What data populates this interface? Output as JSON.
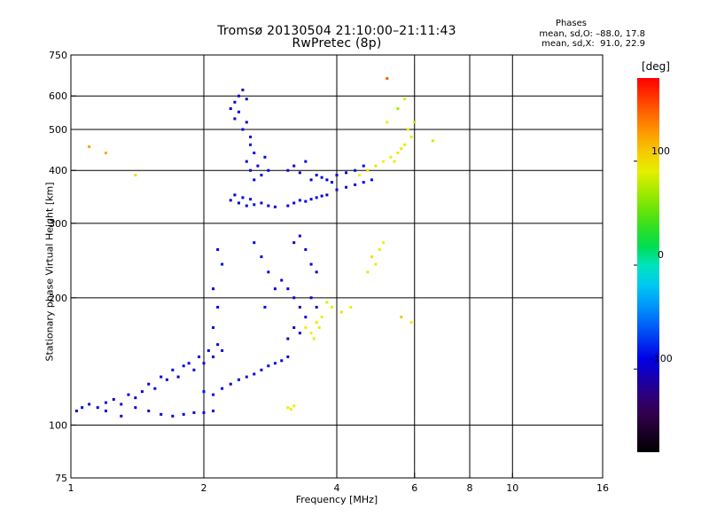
{
  "title_line1": "Tromsø 20130504 21:10:00–21:11:43",
  "title_line2": "RwPretec (8p)",
  "phase_legend": {
    "heading": "Phases",
    "o_line": "mean, sd,O: –88.0, 17.8",
    "x_line": "mean, sd,X:  91.0, 22.9"
  },
  "chart_data": {
    "type": "scatter",
    "xlabel": "Frequency [MHz]",
    "ylabel": "Stationary phase Virtual Height [km]",
    "xscale": "log",
    "yscale": "log",
    "xlim": [
      1,
      16
    ],
    "ylim": [
      75,
      750
    ],
    "xticks": [
      1,
      2,
      4,
      6,
      8,
      10,
      16
    ],
    "xticklabels": [
      "1",
      "2",
      "4",
      "6",
      "8",
      "10",
      "16"
    ],
    "xgrid": [
      2,
      4,
      6,
      8,
      10
    ],
    "yticks": [
      75,
      100,
      200,
      300,
      400,
      500,
      600,
      750
    ],
    "yticklabels": [
      "75",
      "100",
      "200",
      "300",
      "400",
      "500",
      "600",
      "750"
    ],
    "ygrid": [
      100,
      200,
      300,
      400,
      500,
      600
    ],
    "colorbar": {
      "label": "[deg]",
      "range": [
        -180,
        180
      ],
      "ticks": [
        -100,
        0,
        100
      ],
      "ticklabels": [
        "–100",
        "0",
        "100"
      ]
    },
    "series": [
      {
        "points": [
          [
            1.03,
            108,
            -95
          ],
          [
            1.06,
            110,
            -92
          ],
          [
            1.1,
            112,
            -90
          ],
          [
            1.15,
            110,
            -95
          ],
          [
            1.2,
            113,
            -88
          ],
          [
            1.25,
            115,
            -100
          ],
          [
            1.3,
            112,
            -92
          ],
          [
            1.35,
            118,
            -94
          ],
          [
            1.4,
            116,
            -90
          ],
          [
            1.45,
            120,
            -96
          ],
          [
            1.5,
            125,
            -88
          ],
          [
            1.55,
            122,
            -92
          ],
          [
            1.6,
            130,
            -94
          ],
          [
            1.65,
            128,
            -96
          ],
          [
            1.7,
            135,
            -90
          ],
          [
            1.75,
            130,
            -92
          ],
          [
            1.8,
            138,
            -88
          ],
          [
            1.85,
            140,
            -94
          ],
          [
            1.9,
            135,
            -92
          ],
          [
            1.95,
            145,
            -90
          ],
          [
            2.0,
            140,
            -88
          ],
          [
            2.05,
            150,
            -92
          ],
          [
            2.1,
            145,
            -94
          ],
          [
            2.15,
            155,
            -90
          ],
          [
            2.2,
            150,
            -96
          ],
          [
            1.6,
            106,
            -95
          ],
          [
            1.7,
            105,
            -92
          ],
          [
            1.8,
            106,
            -90
          ],
          [
            1.9,
            107,
            -95
          ],
          [
            2.0,
            107,
            -92
          ],
          [
            2.1,
            108,
            -94
          ],
          [
            2.0,
            120,
            -86
          ],
          [
            2.1,
            118,
            -88
          ],
          [
            2.2,
            122,
            -90
          ],
          [
            2.3,
            125,
            -92
          ],
          [
            2.4,
            128,
            -88
          ],
          [
            2.5,
            130,
            -86
          ],
          [
            2.6,
            132,
            -92
          ],
          [
            2.7,
            135,
            -90
          ],
          [
            2.8,
            138,
            -94
          ],
          [
            2.9,
            140,
            -92
          ],
          [
            3.0,
            142,
            -90
          ],
          [
            3.1,
            145,
            -88
          ],
          [
            2.1,
            170,
            -85
          ],
          [
            2.15,
            190,
            -90
          ],
          [
            2.1,
            210,
            -92
          ],
          [
            2.2,
            240,
            -88
          ],
          [
            2.15,
            260,
            -90
          ],
          [
            2.3,
            560,
            -95
          ],
          [
            2.35,
            580,
            -92
          ],
          [
            2.4,
            600,
            -90
          ],
          [
            2.45,
            620,
            -96
          ],
          [
            2.5,
            590,
            -88
          ],
          [
            2.35,
            530,
            -94
          ],
          [
            2.4,
            550,
            -92
          ],
          [
            2.45,
            500,
            -90
          ],
          [
            2.5,
            520,
            -92
          ],
          [
            2.55,
            480,
            -88
          ],
          [
            2.5,
            420,
            -92
          ],
          [
            2.55,
            400,
            -90
          ],
          [
            2.6,
            380,
            -94
          ],
          [
            2.65,
            410,
            -92
          ],
          [
            2.7,
            390,
            -90
          ],
          [
            2.75,
            430,
            -88
          ],
          [
            2.8,
            400,
            -92
          ],
          [
            2.6,
            440,
            -90
          ],
          [
            2.55,
            460,
            -86
          ],
          [
            2.3,
            340,
            -94
          ],
          [
            2.4,
            335,
            -92
          ],
          [
            2.5,
            330,
            -90
          ],
          [
            2.6,
            332,
            -88
          ],
          [
            2.7,
            335,
            -92
          ],
          [
            2.8,
            330,
            -90
          ],
          [
            2.9,
            328,
            -94
          ],
          [
            2.35,
            350,
            -92
          ],
          [
            2.45,
            345,
            -90
          ],
          [
            2.55,
            342,
            -86
          ],
          [
            3.1,
            400,
            -95
          ],
          [
            3.2,
            410,
            -98
          ],
          [
            3.3,
            395,
            -100
          ],
          [
            3.4,
            420,
            -96
          ],
          [
            3.5,
            380,
            -92
          ],
          [
            3.6,
            390,
            -90
          ],
          [
            3.7,
            385,
            -94
          ],
          [
            3.8,
            380,
            -92
          ],
          [
            3.9,
            375,
            -90
          ],
          [
            3.1,
            330,
            -96
          ],
          [
            3.2,
            335,
            -94
          ],
          [
            3.3,
            340,
            -92
          ],
          [
            3.4,
            338,
            -90
          ],
          [
            3.5,
            342,
            -88
          ],
          [
            3.6,
            345,
            -90
          ],
          [
            3.7,
            348,
            -92
          ],
          [
            3.8,
            350,
            -94
          ],
          [
            4.0,
            360,
            -90
          ],
          [
            4.2,
            365,
            -88
          ],
          [
            4.4,
            370,
            -92
          ],
          [
            4.6,
            375,
            -90
          ],
          [
            4.8,
            380,
            -86
          ],
          [
            4.0,
            390,
            -94
          ],
          [
            4.2,
            395,
            -92
          ],
          [
            4.4,
            400,
            -90
          ],
          [
            4.6,
            410,
            -88
          ],
          [
            3.0,
            220,
            -100
          ],
          [
            3.1,
            210,
            -98
          ],
          [
            3.2,
            200,
            -102
          ],
          [
            3.3,
            190,
            -100
          ],
          [
            3.4,
            180,
            -96
          ],
          [
            3.2,
            170,
            -104
          ],
          [
            3.1,
            160,
            -100
          ],
          [
            3.3,
            165,
            -98
          ],
          [
            3.5,
            200,
            -96
          ],
          [
            3.6,
            190,
            -100
          ],
          [
            3.2,
            270,
            -96
          ],
          [
            3.3,
            280,
            -98
          ],
          [
            3.4,
            260,
            -94
          ],
          [
            3.5,
            240,
            -100
          ],
          [
            3.6,
            230,
            -96
          ],
          [
            2.6,
            270,
            -92
          ],
          [
            2.7,
            250,
            -90
          ],
          [
            2.8,
            230,
            -88
          ],
          [
            2.9,
            210,
            -92
          ],
          [
            2.75,
            190,
            -90
          ],
          [
            1.2,
            108,
            -98
          ],
          [
            1.3,
            105,
            -96
          ],
          [
            1.4,
            110,
            -94
          ],
          [
            1.5,
            108,
            -92
          ]
        ]
      },
      {
        "points": [
          [
            4.5,
            390,
            95
          ],
          [
            4.7,
            400,
            98
          ],
          [
            4.9,
            410,
            100
          ],
          [
            5.1,
            420,
            94
          ],
          [
            5.3,
            430,
            92
          ],
          [
            5.5,
            440,
            96
          ],
          [
            5.7,
            460,
            90
          ],
          [
            5.9,
            480,
            88
          ],
          [
            5.6,
            450,
            100
          ],
          [
            5.4,
            420,
            96
          ],
          [
            5.8,
            500,
            92
          ],
          [
            5.5,
            560,
            70
          ],
          [
            5.7,
            590,
            85
          ],
          [
            6.0,
            520,
            78
          ],
          [
            5.2,
            520,
            92
          ],
          [
            4.8,
            250,
            100
          ],
          [
            4.9,
            240,
            96
          ],
          [
            5.0,
            260,
            92
          ],
          [
            4.7,
            230,
            98
          ],
          [
            5.1,
            270,
            94
          ],
          [
            3.4,
            170,
            95
          ],
          [
            3.5,
            165,
            92
          ],
          [
            3.6,
            175,
            98
          ],
          [
            3.7,
            180,
            94
          ],
          [
            3.55,
            160,
            90
          ],
          [
            3.65,
            170,
            92
          ],
          [
            3.8,
            195,
            88
          ],
          [
            3.9,
            190,
            96
          ],
          [
            3.1,
            110,
            92
          ],
          [
            3.2,
            111,
            94
          ],
          [
            3.15,
            109,
            96
          ],
          [
            5.6,
            180,
            110
          ],
          [
            5.9,
            175,
            95
          ],
          [
            4.1,
            185,
            98
          ],
          [
            4.3,
            190,
            92
          ],
          [
            1.1,
            455,
            125
          ],
          [
            1.2,
            440,
            120
          ],
          [
            1.4,
            390,
            100
          ],
          [
            5.2,
            660,
            150
          ],
          [
            6.6,
            470,
            85
          ]
        ]
      }
    ]
  }
}
